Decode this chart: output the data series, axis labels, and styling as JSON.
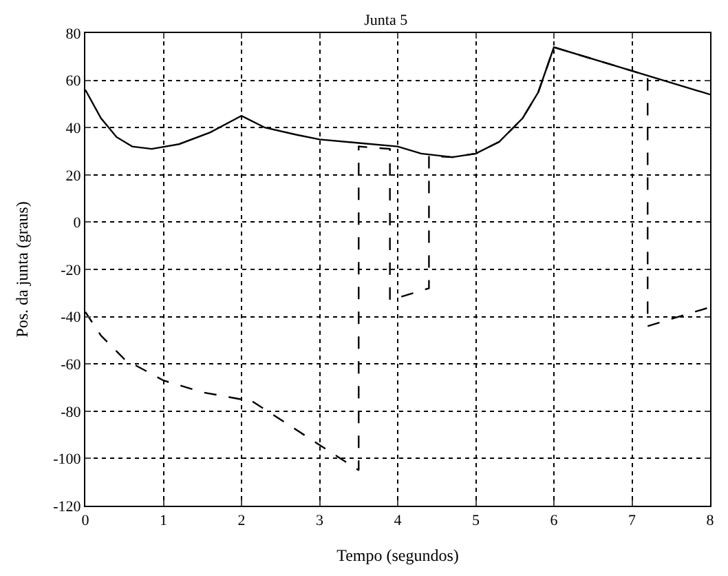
{
  "chart_data": {
    "type": "line",
    "title": "Junta 5",
    "xlabel": "Tempo (segundos)",
    "ylabel": "Pos. da junta (graus)",
    "xlim": [
      0,
      8
    ],
    "xticks": [
      0,
      1,
      2,
      3,
      4,
      5,
      6,
      7,
      8
    ],
    "ylim": [
      -120,
      80
    ],
    "yticks": [
      -120,
      -100,
      -80,
      -60,
      -40,
      -20,
      0,
      20,
      40,
      60,
      80
    ],
    "grid": true,
    "legend": false,
    "marker": "none",
    "series": [
      {
        "color": "#000000",
        "line_style": "solid",
        "x": [
          0,
          0.2,
          0.4,
          0.6,
          0.85,
          1.2,
          1.6,
          2,
          2.3,
          2.7,
          3,
          3.5,
          4,
          4.3,
          4.7,
          5,
          5.3,
          5.6,
          5.8,
          6,
          7,
          8
        ],
        "values": [
          56,
          44,
          36,
          32,
          31,
          33,
          38,
          45,
          40,
          37,
          35,
          33.5,
          32,
          29,
          27.5,
          29,
          34,
          44,
          55,
          74,
          64,
          54
        ]
      },
      {
        "color": "#000000",
        "line_style": "dashed",
        "x": [
          0,
          0.2,
          0.5,
          1,
          1.5,
          2,
          2.1,
          3.5,
          3.5,
          3.9,
          3.9,
          4.4,
          4.4,
          4.7,
          5,
          5.3,
          5.6,
          5.8,
          6,
          7.2,
          7.2,
          8
        ],
        "values": [
          -38,
          -48,
          -58,
          -67,
          -72,
          -75,
          -75,
          -105,
          32,
          31,
          -33,
          -28,
          28,
          27.5,
          29,
          34,
          44,
          55,
          74,
          62,
          -44,
          -36
        ]
      }
    ]
  }
}
